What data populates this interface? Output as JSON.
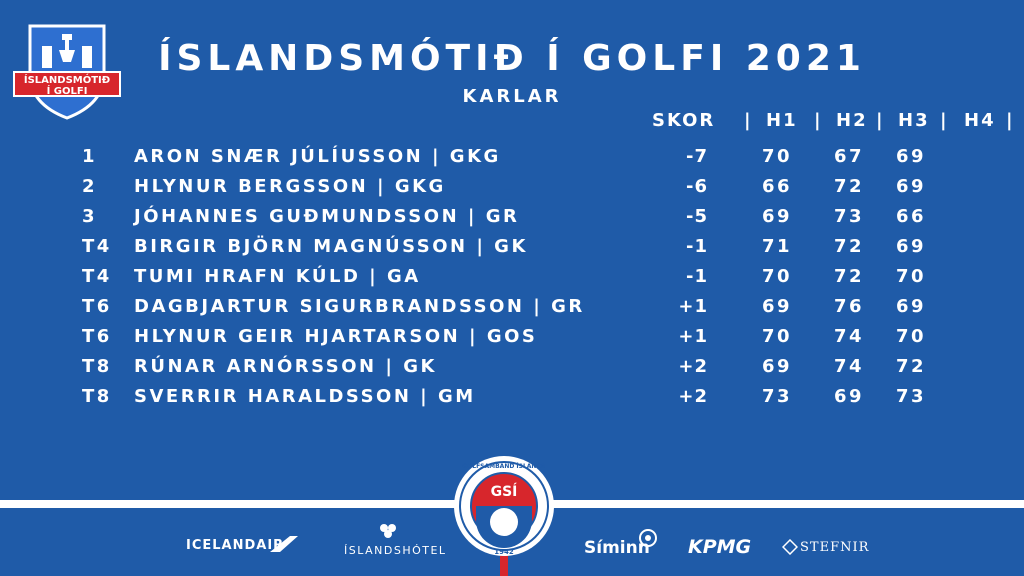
{
  "logo": {
    "text_top": "ÍSLANDSMÓTIÐ",
    "text_bottom": "Í GOLFI",
    "shield_color": "#2E6FD0",
    "ribbon_color": "#D7262C"
  },
  "title": "ÍSLANDSMÓTIÐ Í GOLFI 2021",
  "subtitle": "KARLAR",
  "table": {
    "header": {
      "score": "SKOR",
      "h1": "H1",
      "h2": "H2",
      "h3": "H3",
      "h4": "H4",
      "sep": "|"
    },
    "rows": [
      {
        "pos": "1",
        "name": "ARON SNÆR JÚLÍUSSON | GKG",
        "score": "-7",
        "h1": "70",
        "h2": "67",
        "h3": "69",
        "h4": ""
      },
      {
        "pos": "2",
        "name": "HLYNUR BERGSSON | GKG",
        "score": "-6",
        "h1": "66",
        "h2": "72",
        "h3": "69",
        "h4": ""
      },
      {
        "pos": "3",
        "name": "JÓHANNES GUÐMUNDSSON | GR",
        "score": "-5",
        "h1": "69",
        "h2": "73",
        "h3": "66",
        "h4": ""
      },
      {
        "pos": "T4",
        "name": "BIRGIR BJÖRN MAGNÚSSON | GK",
        "score": "-1",
        "h1": "71",
        "h2": "72",
        "h3": "69",
        "h4": ""
      },
      {
        "pos": "T4",
        "name": "TUMI HRAFN KÚLD | GA",
        "score": "-1",
        "h1": "70",
        "h2": "72",
        "h3": "70",
        "h4": ""
      },
      {
        "pos": "T6",
        "name": "DAGBJARTUR SIGURBRANDSSON | GR",
        "score": "+1",
        "h1": "69",
        "h2": "76",
        "h3": "69",
        "h4": ""
      },
      {
        "pos": "T6",
        "name": "HLYNUR GEIR HJARTARSON | GOS",
        "score": "+1",
        "h1": "70",
        "h2": "74",
        "h3": "70",
        "h4": ""
      },
      {
        "pos": "T8",
        "name": "RÚNAR ARNÓRSSON | GK",
        "score": "+2",
        "h1": "69",
        "h2": "74",
        "h3": "72",
        "h4": ""
      },
      {
        "pos": "T8",
        "name": "SVERRIR HARALDSSON | GM",
        "score": "+2",
        "h1": "73",
        "h2": "69",
        "h3": "73",
        "h4": ""
      }
    ]
  },
  "badge": {
    "ring_text": "GOLFSAMBAND ÍSLANDS",
    "center": "GSÍ",
    "year": "1942"
  },
  "sponsors": {
    "icelandair": "ICELANDAIR",
    "hotel": "ÍSLANDSHÓTEL",
    "siminn": "Síminn",
    "kpmg": "KPMG",
    "stefnir": "STEFNIR"
  },
  "colors": {
    "background": "#1F5BA8",
    "accent_red": "#D7262C",
    "text": "#FFFFFF"
  }
}
